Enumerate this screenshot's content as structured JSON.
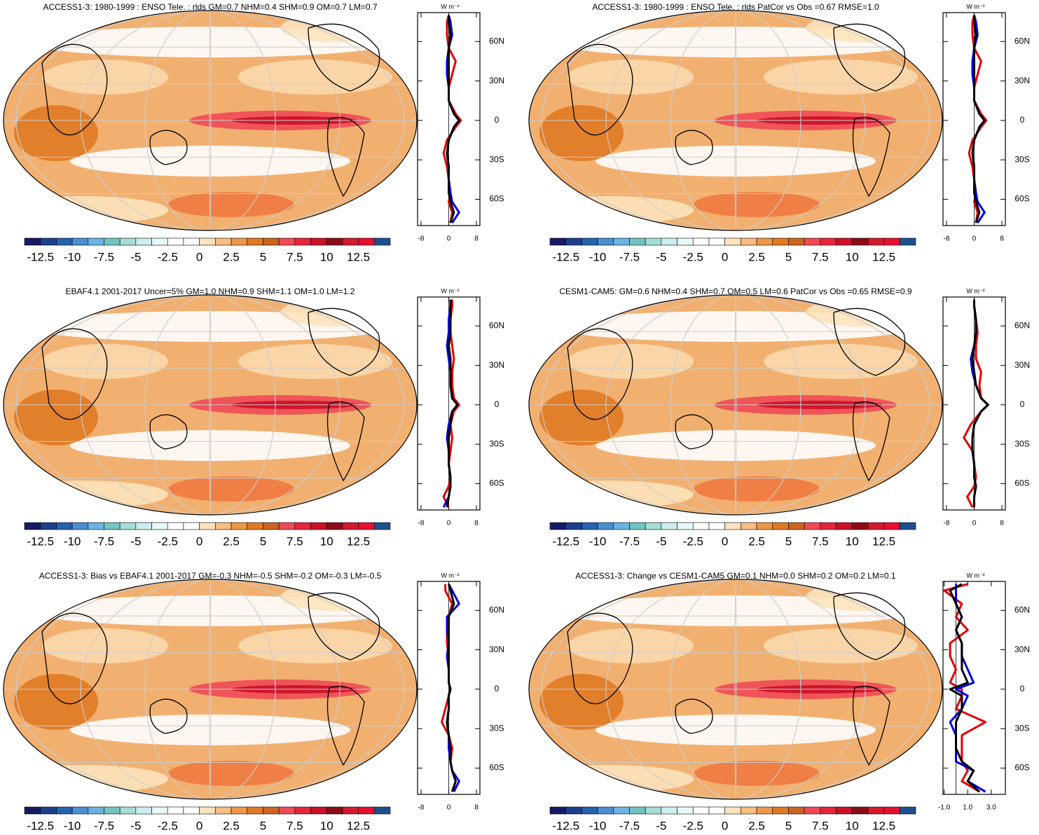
{
  "colorbar": {
    "colors": [
      "#161a66",
      "#1d3f8c",
      "#2562b0",
      "#4a8fd2",
      "#6cb2e2",
      "#72c4c0",
      "#a4dcd8",
      "#cdeef0",
      "#e6f8f8",
      "#ffffff",
      "#ffffff",
      "#fde3bd",
      "#f7bc80",
      "#ee9748",
      "#e07a22",
      "#cc6420",
      "#f04a55",
      "#e8243c",
      "#cc1028",
      "#8e0a18",
      "#d41a2c",
      "#e61030",
      "#1f4f8f"
    ],
    "labels": [
      -12.5,
      -10,
      -7.5,
      -5,
      -2.5,
      0,
      2.5,
      5,
      7.5,
      10,
      12.5
    ]
  },
  "panels": [
    {
      "title": "ACCESS1-3: 1980-1999 : ENSO Tele. : rlds GM=0.7 NHM=0.4 SHM=0.9 OM=0.7 LM=0.7",
      "zonal": {
        "unit": "W m⁻²",
        "xlim": [
          -9,
          9
        ],
        "xticks": [
          -8,
          0,
          8
        ],
        "ylim": [
          -80,
          82
        ],
        "yticks": [
          {
            "value": 60,
            "label": "60N"
          },
          {
            "value": 30,
            "label": "30N"
          },
          0,
          {
            "value": -30,
            "label": "30S"
          },
          {
            "value": -60,
            "label": "60S"
          }
        ],
        "lat": [
          -78,
          -70,
          -62,
          -55,
          -45,
          -35,
          -25,
          -15,
          -5,
          0,
          5,
          15,
          25,
          35,
          45,
          55,
          65,
          75,
          80
        ],
        "series": [
          {
            "color": "#e00000",
            "values": [
              0.5,
              1,
              0,
              0.5,
              0,
              -0.5,
              -1.5,
              -0.5,
              2,
              3.5,
              2,
              0,
              0,
              1,
              2,
              0,
              -0.5,
              -0.5,
              0
            ]
          },
          {
            "color": "#0000e0",
            "values": [
              1,
              3,
              1,
              0.5,
              0,
              0,
              -0.5,
              0,
              1.5,
              3,
              1.5,
              0,
              0,
              -0.5,
              -0.5,
              0,
              1,
              0.5,
              0
            ]
          },
          {
            "color": "#000000",
            "values": [
              0.5,
              1.5,
              0.5,
              0,
              0,
              0,
              -0.5,
              0,
              1.5,
              3,
              1.5,
              0,
              0,
              0,
              0,
              0,
              0.5,
              0,
              0
            ]
          }
        ]
      }
    },
    {
      "title": "ACCESS1-3: 1980-1999 : ENSO Tele. : rlds PatCor vs Obs =0.67 RMSE=1.0",
      "zonal": {
        "unit": "W m⁻²",
        "xlim": [
          -9,
          9
        ],
        "xticks": [
          -8,
          0,
          8
        ],
        "ylim": [
          -80,
          82
        ],
        "yticks": [
          {
            "value": 60,
            "label": "60N"
          },
          {
            "value": 30,
            "label": "30N"
          },
          0,
          {
            "value": -30,
            "label": "30S"
          },
          {
            "value": -60,
            "label": "60S"
          }
        ],
        "lat": [
          -78,
          -70,
          -62,
          -55,
          -45,
          -35,
          -25,
          -15,
          -5,
          0,
          5,
          15,
          25,
          35,
          45,
          55,
          65,
          75,
          80
        ],
        "series": [
          {
            "color": "#e00000",
            "values": [
              0.5,
              1,
              0,
              0.5,
              0,
              -0.5,
              -1.5,
              -0.5,
              2,
              3.5,
              2,
              0,
              0,
              1,
              2,
              0,
              -0.5,
              -0.5,
              0
            ]
          },
          {
            "color": "#0000e0",
            "values": [
              1,
              3,
              1,
              0.5,
              0,
              0,
              -0.5,
              0,
              1.5,
              3,
              1.5,
              0,
              0,
              -0.5,
              -0.5,
              0,
              1,
              0.5,
              0
            ]
          },
          {
            "color": "#000000",
            "values": [
              0.5,
              1.5,
              0.5,
              0,
              0,
              0,
              -0.5,
              0,
              1.5,
              3,
              1.5,
              0,
              0,
              0,
              0,
              0,
              0.5,
              0,
              0
            ]
          }
        ]
      }
    },
    {
      "title": "EBAF4.1 2001-2017 Uncer=5% GM=1.0 NHM=0.9 SHM=1.1 OM=1.0 LM=1.2",
      "zonal": {
        "unit": "W m⁻²",
        "xlim": [
          -9,
          9
        ],
        "xticks": [
          -8,
          0,
          8
        ],
        "ylim": [
          -80,
          82
        ],
        "yticks": [
          {
            "value": 60,
            "label": "60N"
          },
          {
            "value": 30,
            "label": "30N"
          },
          0,
          {
            "value": -30,
            "label": "30S"
          },
          {
            "value": -60,
            "label": "60S"
          }
        ],
        "lat": [
          -78,
          -70,
          -62,
          -55,
          -45,
          -35,
          -25,
          -15,
          -5,
          0,
          5,
          15,
          25,
          35,
          45,
          55,
          65,
          75,
          80
        ],
        "series": [
          {
            "color": "#e00000",
            "values": [
              0,
              -1.5,
              0,
              0.5,
              0,
              0.5,
              1,
              0.5,
              1.5,
              3,
              1.5,
              1,
              1,
              1.5,
              1,
              0.5,
              0.5,
              1,
              1
            ]
          },
          {
            "color": "#0000e0",
            "values": [
              -1.5,
              0,
              0.5,
              0.5,
              0,
              0,
              -0.5,
              0,
              1,
              2.5,
              1,
              0.5,
              0.5,
              0,
              -0.5,
              0,
              0,
              0.5,
              0.5
            ]
          },
          {
            "color": "#000000",
            "values": [
              -0.5,
              0,
              0.5,
              0.5,
              0,
              0,
              0,
              0.5,
              1,
              2.5,
              1,
              0.5,
              0.5,
              0.5,
              0,
              0.5,
              0.5,
              0.5,
              0.5
            ]
          }
        ]
      }
    },
    {
      "title": "CESM1-CAM5: GM=0.6 NHM=0.4 SHM=0.7 OM=0.5 LM=0.6 PatCor vs Obs =0.65 RMSE=0.9",
      "zonal": {
        "unit": "W m⁻²",
        "xlim": [
          -9,
          9
        ],
        "xticks": [
          -8,
          0,
          8
        ],
        "ylim": [
          -80,
          82
        ],
        "yticks": [
          {
            "value": 60,
            "label": "60N"
          },
          {
            "value": 30,
            "label": "30N"
          },
          0,
          {
            "value": -30,
            "label": "30S"
          },
          {
            "value": -60,
            "label": "60S"
          }
        ],
        "lat": [
          -78,
          -70,
          -62,
          -55,
          -45,
          -35,
          -25,
          -15,
          -5,
          0,
          5,
          15,
          25,
          35,
          45,
          55,
          65,
          75,
          80
        ],
        "series": [
          {
            "color": "#e00000",
            "values": [
              -0.5,
              -2,
              0,
              0.5,
              0,
              -0.5,
              -3,
              -1,
              2,
              4,
              2,
              1.5,
              2,
              0.5,
              0.5,
              1,
              0.5,
              0,
              0
            ]
          },
          {
            "color": "#0000e0",
            "values": [
              0,
              0,
              0.5,
              0,
              0,
              -0.5,
              -0.5,
              0,
              2,
              4,
              2,
              0.5,
              -0.5,
              -1,
              0,
              0.5,
              0.5,
              0,
              0
            ]
          },
          {
            "color": "#000000",
            "values": [
              0,
              0,
              0.5,
              0,
              0,
              -0.5,
              -0.5,
              0,
              2,
              4,
              2,
              0.5,
              0,
              -0.5,
              0,
              0.5,
              0.5,
              0,
              0
            ]
          }
        ]
      }
    },
    {
      "title": "ACCESS1-3: Bias vs EBAF4.1 2001-2017 GM=-0.3 NHM=-0.5 SHM=-0.2 OM=-0.3 LM=-0.5",
      "zonal": {
        "unit": "W m⁻²",
        "xlim": [
          -9,
          9
        ],
        "xticks": [
          -8,
          0,
          8
        ],
        "ylim": [
          -80,
          82
        ],
        "yticks": [
          {
            "value": 60,
            "label": "60N"
          },
          {
            "value": 30,
            "label": "30N"
          },
          0,
          {
            "value": -30,
            "label": "30S"
          },
          {
            "value": -60,
            "label": "60S"
          }
        ],
        "lat": [
          -78,
          -70,
          -62,
          -55,
          -45,
          -35,
          -25,
          -15,
          -5,
          0,
          5,
          15,
          25,
          35,
          45,
          55,
          65,
          75,
          80
        ],
        "series": [
          {
            "color": "#e00000",
            "values": [
              1,
              2,
              1,
              0.5,
              1,
              0,
              -2,
              -1,
              0,
              0.5,
              0,
              0,
              0,
              -0.5,
              -0.5,
              0,
              1,
              -1,
              -1
            ]
          },
          {
            "color": "#0000e0",
            "values": [
              1.5,
              3,
              1,
              0.5,
              0,
              0,
              -0.5,
              0,
              0,
              0.5,
              0,
              0,
              -0.5,
              0,
              -0.5,
              -0.5,
              3,
              1,
              0
            ]
          },
          {
            "color": "#000000",
            "values": [
              1,
              2,
              1,
              0.5,
              0.5,
              0,
              -0.5,
              0,
              0,
              0.5,
              0,
              0,
              0,
              0,
              0,
              0,
              1.5,
              0.5,
              0
            ]
          }
        ]
      }
    },
    {
      "title": "ACCESS1-3: Change vs CESM1-CAM5 GM=0.1 NHM=0.0 SHM=0.2 OM=0.2 LM=0.1",
      "zonal": {
        "unit": "W m⁻²",
        "xlim": [
          -1.1,
          4.2
        ],
        "xticks": [
          {
            "value": -1,
            "label": "-1.0"
          },
          {
            "value": 1,
            "label": "1.0"
          },
          {
            "value": 3,
            "label": "3.0"
          }
        ],
        "ylim": [
          -80,
          82
        ],
        "yticks": [
          {
            "value": 60,
            "label": "60N"
          },
          {
            "value": 30,
            "label": "30N"
          },
          0,
          {
            "value": -30,
            "label": "30S"
          },
          {
            "value": -60,
            "label": "60S"
          }
        ],
        "lat": [
          -78,
          -70,
          -62,
          -55,
          -45,
          -35,
          -25,
          -15,
          -5,
          0,
          5,
          15,
          25,
          35,
          45,
          55,
          65,
          75,
          80
        ],
        "series": [
          {
            "color": "#e00000",
            "values": [
              2,
              0.5,
              1,
              0.5,
              0.5,
              0.5,
              2.5,
              0,
              0.5,
              0.5,
              -0.5,
              0,
              -0.5,
              -0.5,
              1,
              0,
              0.5,
              -1,
              1
            ]
          },
          {
            "color": "#0000e0",
            "values": [
              2.5,
              1,
              1.5,
              0,
              0,
              0,
              -0.5,
              0.5,
              1,
              0,
              1.5,
              1,
              0.5,
              0.5,
              0,
              0.5,
              0,
              0,
              0
            ]
          },
          {
            "color": "#000000",
            "values": [
              2,
              1,
              1.5,
              0.5,
              0,
              0,
              0,
              0.5,
              0.5,
              -0.5,
              1,
              0.5,
              0.5,
              0.5,
              0,
              0.5,
              0,
              -0.5,
              0.5
            ]
          }
        ]
      }
    }
  ]
}
